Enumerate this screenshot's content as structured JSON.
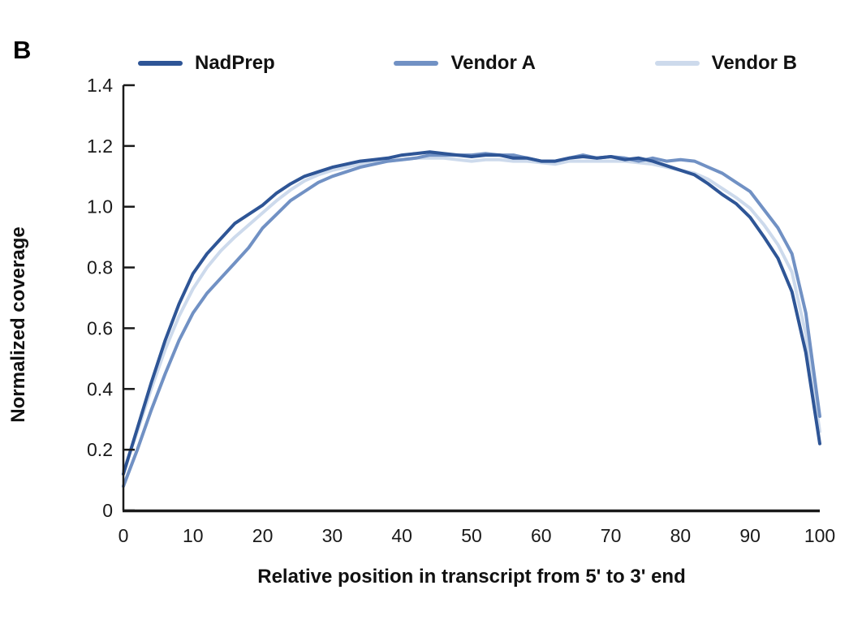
{
  "panel_label": "B",
  "colors": {
    "nadprep": "#2E5596",
    "vendor_a": "#7191C4",
    "vendor_b": "#CDDAEC",
    "axis": "#1a1a1a",
    "text": "#1a1a1a"
  },
  "chart_data": {
    "type": "line",
    "title": "",
    "xlabel": "Relative position in transcript from 5' to 3' end",
    "ylabel": "Normalized coverage",
    "xlim": [
      0,
      100
    ],
    "ylim": [
      0,
      1.4
    ],
    "x_ticks": [
      0,
      10,
      20,
      30,
      40,
      50,
      60,
      70,
      80,
      90,
      100
    ],
    "y_ticks": [
      0,
      0.2,
      0.4,
      0.6,
      0.8,
      1.0,
      1.2,
      1.4
    ],
    "y_tick_labels": [
      "0",
      "0.2",
      "0.4",
      "0.6",
      "0.8",
      "1.0",
      "1.2",
      "1.4"
    ],
    "grid": false,
    "legend_position": "top",
    "x": [
      0,
      2,
      4,
      6,
      8,
      10,
      12,
      14,
      16,
      18,
      20,
      22,
      24,
      26,
      28,
      30,
      32,
      34,
      36,
      38,
      40,
      42,
      44,
      46,
      48,
      50,
      52,
      54,
      56,
      58,
      60,
      62,
      64,
      66,
      68,
      70,
      72,
      74,
      76,
      78,
      80,
      82,
      84,
      86,
      88,
      90,
      92,
      94,
      96,
      98,
      100
    ],
    "series": [
      {
        "name": "NadPrep",
        "color": "#2E5596",
        "values": [
          0.12,
          0.27,
          0.42,
          0.56,
          0.68,
          0.78,
          0.845,
          0.895,
          0.945,
          0.975,
          1.005,
          1.045,
          1.075,
          1.1,
          1.115,
          1.13,
          1.14,
          1.15,
          1.155,
          1.16,
          1.17,
          1.175,
          1.18,
          1.175,
          1.17,
          1.165,
          1.17,
          1.17,
          1.16,
          1.16,
          1.15,
          1.15,
          1.16,
          1.165,
          1.16,
          1.165,
          1.155,
          1.16,
          1.15,
          1.135,
          1.12,
          1.105,
          1.075,
          1.04,
          1.01,
          0.965,
          0.9,
          0.83,
          0.72,
          0.52,
          0.22
        ]
      },
      {
        "name": "Vendor A",
        "color": "#7191C4",
        "values": [
          0.08,
          0.2,
          0.33,
          0.45,
          0.56,
          0.65,
          0.715,
          0.765,
          0.815,
          0.865,
          0.93,
          0.975,
          1.02,
          1.05,
          1.08,
          1.1,
          1.115,
          1.13,
          1.14,
          1.15,
          1.155,
          1.16,
          1.17,
          1.17,
          1.17,
          1.17,
          1.175,
          1.17,
          1.17,
          1.16,
          1.15,
          1.15,
          1.16,
          1.17,
          1.16,
          1.165,
          1.16,
          1.15,
          1.16,
          1.15,
          1.155,
          1.15,
          1.13,
          1.11,
          1.08,
          1.05,
          0.99,
          0.93,
          0.845,
          0.65,
          0.31
        ]
      },
      {
        "name": "Vendor B",
        "color": "#CDDAEC",
        "values": [
          0.13,
          0.26,
          0.4,
          0.53,
          0.64,
          0.73,
          0.8,
          0.855,
          0.9,
          0.94,
          0.98,
          1.02,
          1.055,
          1.085,
          1.105,
          1.12,
          1.13,
          1.14,
          1.145,
          1.15,
          1.155,
          1.16,
          1.16,
          1.16,
          1.155,
          1.15,
          1.155,
          1.155,
          1.15,
          1.15,
          1.145,
          1.14,
          1.15,
          1.15,
          1.15,
          1.15,
          1.15,
          1.145,
          1.14,
          1.13,
          1.12,
          1.11,
          1.09,
          1.06,
          1.03,
          0.995,
          0.94,
          0.875,
          0.785,
          0.58,
          0.26
        ]
      }
    ]
  }
}
